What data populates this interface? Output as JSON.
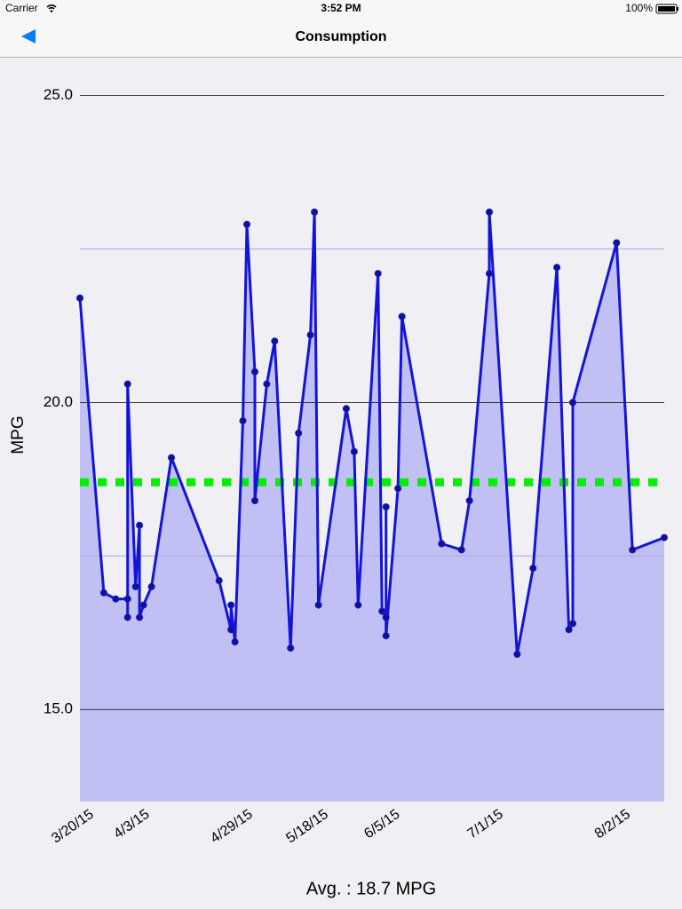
{
  "status_bar": {
    "carrier": "Carrier",
    "time": "3:52 PM",
    "battery": "100%"
  },
  "nav_bar": {
    "title": "Consumption"
  },
  "chart_data": {
    "type": "area",
    "y_label": "MPG",
    "x": [
      "2015-03-20",
      "2015-03-26",
      "2015-03-29",
      "2015-04-01",
      "2015-04-01",
      "2015-04-01",
      "2015-04-03",
      "2015-04-04",
      "2015-04-04",
      "2015-04-05",
      "2015-04-07",
      "2015-04-12",
      "2015-04-24",
      "2015-04-27",
      "2015-04-27",
      "2015-04-28",
      "2015-04-30",
      "2015-05-01",
      "2015-05-03",
      "2015-05-03",
      "2015-05-06",
      "2015-05-08",
      "2015-05-12",
      "2015-05-14",
      "2015-05-17",
      "2015-05-18",
      "2015-05-19",
      "2015-05-26",
      "2015-05-28",
      "2015-05-29",
      "2015-06-03",
      "2015-06-04",
      "2015-06-05",
      "2015-06-05",
      "2015-06-05",
      "2015-06-08",
      "2015-06-09",
      "2015-06-19",
      "2015-06-24",
      "2015-06-26",
      "2015-07-01",
      "2015-07-01",
      "2015-07-08",
      "2015-07-12",
      "2015-07-18",
      "2015-07-21",
      "2015-07-22",
      "2015-07-22",
      "2015-08-02",
      "2015-08-06",
      "2015-08-14"
    ],
    "values": [
      21.7,
      16.9,
      16.8,
      16.8,
      16.5,
      20.3,
      17.0,
      18.0,
      16.5,
      16.7,
      17.0,
      19.1,
      17.1,
      16.3,
      16.7,
      16.1,
      19.7,
      22.9,
      20.5,
      18.4,
      20.3,
      21.0,
      16.0,
      19.5,
      21.1,
      23.1,
      16.7,
      19.9,
      19.2,
      16.7,
      22.1,
      16.6,
      16.5,
      18.3,
      16.2,
      18.6,
      21.4,
      17.7,
      17.6,
      18.4,
      22.1,
      23.1,
      15.9,
      17.3,
      22.2,
      16.3,
      16.4,
      20.0,
      22.6,
      17.6,
      17.8
    ],
    "line_color": "#1414d9",
    "fill_color": "#c0c0f4",
    "marker_color": "#12128c",
    "xlim": [
      "2015-03-20",
      "2015-08-14"
    ],
    "xticks": [
      {
        "value": "2015-03-20",
        "label": "3/20/15"
      },
      {
        "value": "2015-04-03",
        "label": "4/3/15"
      },
      {
        "value": "2015-04-29",
        "label": "4/29/15"
      },
      {
        "value": "2015-05-18",
        "label": "5/18/15"
      },
      {
        "value": "2015-06-05",
        "label": "6/5/15"
      },
      {
        "value": "2015-07-01",
        "label": "7/1/15"
      },
      {
        "value": "2015-08-02",
        "label": "8/2/15"
      }
    ],
    "ylim": [
      13.5,
      25.6
    ],
    "yticks": [
      {
        "value": 15,
        "label": "15.0"
      },
      {
        "value": 20,
        "label": "20.0"
      },
      {
        "value": 25,
        "label": "25.0"
      }
    ],
    "minor_yticks": [
      17.5,
      22.5
    ],
    "grid": true,
    "average": {
      "value": 18.7,
      "label": "Avg. : 18.7 MPG",
      "color": "#00ee00"
    }
  }
}
